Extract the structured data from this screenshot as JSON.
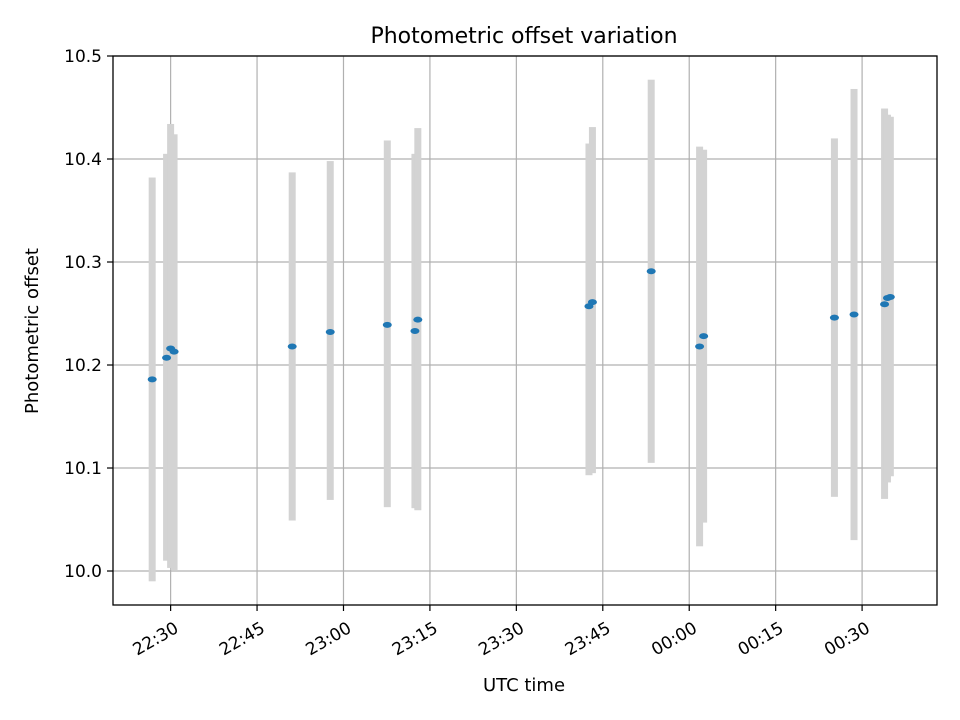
{
  "chart_data": {
    "type": "scatter",
    "title": "Photometric offset variation",
    "xlabel": "UTC time",
    "ylabel": "Photometric offset",
    "grid": true,
    "xlim": [
      "22:20",
      "00:43"
    ],
    "ylim": [
      9.967,
      10.5
    ],
    "x_ticks": [
      "22:30",
      "22:45",
      "23:00",
      "23:15",
      "23:30",
      "23:45",
      "00:00",
      "00:15",
      "00:30"
    ],
    "y_ticks": [
      "10.0",
      "10.1",
      "10.2",
      "10.3",
      "10.4",
      "10.5"
    ],
    "colors": {
      "point": "#1f77b4",
      "errorbar": "#d3d3d3",
      "grid": "#b0b0b0"
    },
    "points": [
      {
        "x": "22:26.8",
        "y": 10.186,
        "err_low": 9.99,
        "err_high": 10.382
      },
      {
        "x": "22:29.3",
        "y": 10.207,
        "err_low": 10.01,
        "err_high": 10.405
      },
      {
        "x": "22:30.0",
        "y": 10.216,
        "err_low": 10.003,
        "err_high": 10.434
      },
      {
        "x": "22:30.6",
        "y": 10.213,
        "err_low": 10.001,
        "err_high": 10.424
      },
      {
        "x": "22:51.1",
        "y": 10.218,
        "err_low": 10.049,
        "err_high": 10.387
      },
      {
        "x": "22:57.7",
        "y": 10.232,
        "err_low": 10.069,
        "err_high": 10.398
      },
      {
        "x": "23:07.6",
        "y": 10.239,
        "err_low": 10.062,
        "err_high": 10.418
      },
      {
        "x": "23:12.4",
        "y": 10.233,
        "err_low": 10.061,
        "err_high": 10.405
      },
      {
        "x": "23:12.9",
        "y": 10.244,
        "err_low": 10.059,
        "err_high": 10.43
      },
      {
        "x": "23:42.6",
        "y": 10.257,
        "err_low": 10.093,
        "err_high": 10.415
      },
      {
        "x": "23:43.2",
        "y": 10.261,
        "err_low": 10.095,
        "err_high": 10.431
      },
      {
        "x": "23:53.4",
        "y": 10.291,
        "err_low": 10.105,
        "err_high": 10.477
      },
      {
        "x": "00:01.8",
        "y": 10.218,
        "err_low": 10.024,
        "err_high": 10.412
      },
      {
        "x": "00:02.5",
        "y": 10.228,
        "err_low": 10.047,
        "err_high": 10.409
      },
      {
        "x": "00:25.2",
        "y": 10.246,
        "err_low": 10.072,
        "err_high": 10.42
      },
      {
        "x": "00:28.6",
        "y": 10.249,
        "err_low": 10.03,
        "err_high": 10.468
      },
      {
        "x": "00:33.9",
        "y": 10.259,
        "err_low": 10.07,
        "err_high": 10.449
      },
      {
        "x": "00:34.4",
        "y": 10.265,
        "err_low": 10.086,
        "err_high": 10.443
      },
      {
        "x": "00:34.9",
        "y": 10.266,
        "err_low": 10.092,
        "err_high": 10.441
      }
    ]
  }
}
